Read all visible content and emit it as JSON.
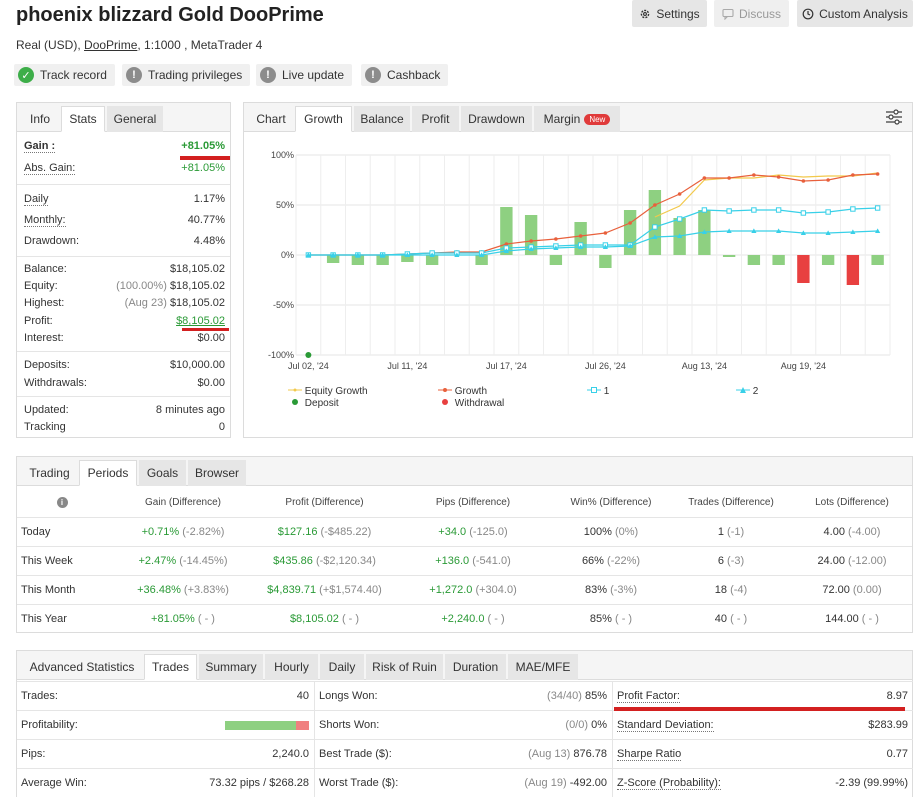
{
  "header": {
    "title": "phoenix blizzard Gold DooPrime",
    "account_type": "Real (USD),",
    "broker": "DooPrime",
    "leverage_platform": ", 1:1000 , MetaTrader 4",
    "buttons": {
      "settings": "Settings",
      "discuss": "Discuss",
      "custom_analysis": "Custom Analysis"
    }
  },
  "badges": [
    {
      "label": "Track record",
      "status": "ok"
    },
    {
      "label": "Trading privileges",
      "status": "warn"
    },
    {
      "label": "Live update",
      "status": "warn"
    },
    {
      "label": "Cashback",
      "status": "warn"
    }
  ],
  "info_panel": {
    "tabs": [
      "Info",
      "Stats",
      "General"
    ],
    "active_tab": "Stats",
    "gain_label": "Gain :",
    "gain_value": "+81.05%",
    "abs_gain_label": "Abs. Gain:",
    "abs_gain_value": "+81.05%",
    "daily_label": "Daily",
    "daily_value": "1.17%",
    "monthly_label": "Monthly:",
    "monthly_value": "40.77%",
    "drawdown_label": "Drawdown:",
    "drawdown_value": "4.48%",
    "balance_label": "Balance:",
    "balance_value": "$18,105.02",
    "equity_label": "Equity:",
    "equity_pct": "(100.00%)",
    "equity_value": "$18,105.02",
    "highest_label": "Highest:",
    "highest_date": "(Aug 23)",
    "highest_value": "$18,105.02",
    "profit_label": "Profit:",
    "profit_value": "$8,105.02",
    "interest_label": "Interest:",
    "interest_value": "$0.00",
    "deposits_label": "Deposits:",
    "deposits_value": "$10,000.00",
    "withdrawals_label": "Withdrawals:",
    "withdrawals_value": "$0.00",
    "updated_label": "Updated:",
    "updated_value": "8 minutes ago",
    "tracking_label": "Tracking",
    "tracking_value": "0"
  },
  "chart_panel": {
    "tabs": [
      "Chart",
      "Growth",
      "Balance",
      "Profit",
      "Drawdown",
      "Margin"
    ],
    "active_tab": "Growth",
    "margin_badge": "New",
    "legend": {
      "equity_growth": "Equity Growth",
      "growth": "Growth",
      "s1": "1",
      "s2": "2",
      "deposit": "Deposit",
      "withdrawal": "Withdrawal"
    }
  },
  "chart_data": {
    "type": "line",
    "y_tick_labels": [
      "100%",
      "50%",
      "0%",
      "-50%",
      "-100%"
    ],
    "y_ticks": [
      100,
      50,
      0,
      -50,
      -100
    ],
    "ylim": [
      -100,
      100
    ],
    "x_tick_labels": [
      "Jul 02, '24",
      "Jul 11, '24",
      "Jul 17, '24",
      "Jul 26, '24",
      "Aug 13, '24",
      "Aug 19, '24"
    ],
    "x_tick_index": [
      0,
      4,
      8,
      12,
      16,
      20
    ],
    "x_count": 24,
    "grid": true,
    "legend_position": "bottom-left",
    "colors": {
      "equity": "#f2c94c",
      "growth": "#e8603c",
      "s1": "#38d0e8",
      "s2": "#38d0e8",
      "bar": "#8ed081",
      "bar_neg": "#e84040",
      "deposit": "#2a9a36",
      "withdrawal": "#e84040"
    },
    "series": [
      {
        "name": "Equity Growth",
        "kind": "line",
        "x": [
          14,
          15,
          16,
          17,
          18,
          19,
          20,
          21,
          22,
          23
        ],
        "values": [
          38,
          49,
          75,
          77,
          77,
          80,
          78,
          79,
          79,
          82
        ]
      },
      {
        "name": "Growth",
        "kind": "line",
        "x": [
          0,
          1,
          2,
          3,
          4,
          5,
          6,
          7,
          8,
          9,
          10,
          11,
          12,
          13,
          14,
          15,
          16,
          17,
          18,
          19,
          20,
          21,
          22,
          23
        ],
        "values": [
          0,
          0,
          0,
          0,
          1,
          2,
          3,
          3,
          11,
          14,
          16,
          19,
          22,
          32,
          50,
          61,
          77,
          77,
          80,
          78,
          74,
          75,
          80,
          81
        ]
      },
      {
        "name": "1",
        "kind": "line",
        "x": [
          0,
          1,
          2,
          3,
          4,
          5,
          6,
          7,
          8,
          9,
          10,
          11,
          12,
          13,
          14,
          15,
          16,
          17,
          18,
          19,
          20,
          21,
          22,
          23
        ],
        "values": [
          0,
          0,
          0,
          0,
          1,
          2,
          2,
          2,
          7,
          8,
          9,
          10,
          10,
          10,
          28,
          36,
          45,
          44,
          45,
          45,
          42,
          43,
          46,
          47
        ]
      },
      {
        "name": "2",
        "kind": "line",
        "x": [
          0,
          1,
          2,
          3,
          4,
          5,
          6,
          7,
          8,
          9,
          10,
          11,
          12,
          13,
          14,
          15,
          16,
          17,
          18,
          19,
          20,
          21,
          22,
          23
        ],
        "values": [
          0,
          0,
          0,
          0,
          0,
          0,
          0,
          0,
          4,
          6,
          7,
          8,
          8,
          9,
          18,
          19,
          23,
          24,
          24,
          24,
          22,
          22,
          23,
          24
        ]
      },
      {
        "name": "",
        "kind": "bar",
        "x": [
          1,
          2,
          3,
          4,
          5,
          7,
          8,
          9,
          10,
          11,
          12,
          13,
          14,
          15,
          16,
          17,
          18,
          19,
          20,
          21,
          22,
          23
        ],
        "values": [
          -8,
          -10,
          -10,
          -7,
          -10,
          -10,
          48,
          40,
          -10,
          33,
          -13,
          45,
          65,
          37,
          45,
          -2,
          -10,
          -10,
          -28,
          -10,
          -30,
          -10
        ]
      }
    ],
    "deposit": {
      "x": 0,
      "value": -100
    }
  },
  "periods_panel": {
    "tabs": [
      "Trading",
      "Periods",
      "Goals",
      "Browser"
    ],
    "active_tab": "Periods",
    "info_icon": "i",
    "columns": [
      "Gain (Difference)",
      "Profit (Difference)",
      "Pips (Difference)",
      "Win% (Difference)",
      "Trades (Difference)",
      "Lots (Difference)"
    ],
    "rows": [
      {
        "period": "Today",
        "gain": "+0.71%",
        "gain_diff": "(-2.82%)",
        "profit": "$127.16",
        "profit_diff": "(-$485.22)",
        "pips": "+34.0",
        "pips_diff": "(-125.0)",
        "win": "100%",
        "win_diff": "(0%)",
        "trades": "1",
        "trades_diff": "(-1)",
        "lots": "4.00",
        "lots_diff": "(-4.00)"
      },
      {
        "period": "This Week",
        "gain": "+2.47%",
        "gain_diff": "(-14.45%)",
        "profit": "$435.86",
        "profit_diff": "(-$2,120.34)",
        "pips": "+136.0",
        "pips_diff": "(-541.0)",
        "win": "66%",
        "win_diff": "(-22%)",
        "trades": "6",
        "trades_diff": "(-3)",
        "lots": "24.00",
        "lots_diff": "(-12.00)"
      },
      {
        "period": "This Month",
        "gain": "+36.48%",
        "gain_diff": "(+3.83%)",
        "profit": "$4,839.71",
        "profit_diff": "(+$1,574.40)",
        "pips": "+1,272.0",
        "pips_diff": "(+304.0)",
        "win": "83%",
        "win_diff": "(-3%)",
        "trades": "18",
        "trades_diff": "(-4)",
        "lots": "72.00",
        "lots_diff": "(0.00)"
      },
      {
        "period": "This Year",
        "gain": "+81.05%",
        "gain_diff": "( - )",
        "profit": "$8,105.02",
        "profit_diff": "( - )",
        "pips": "+2,240.0",
        "pips_diff": "( - )",
        "win": "85%",
        "win_diff": "( - )",
        "trades": "40",
        "trades_diff": "( - )",
        "lots": "144.00",
        "lots_diff": "( - )"
      }
    ]
  },
  "advanced_panel": {
    "tabs": [
      "Advanced Statistics",
      "Trades",
      "Summary",
      "Hourly",
      "Daily",
      "Risk of Ruin",
      "Duration",
      "MAE/MFE"
    ],
    "active_tab": "Trades",
    "col1": [
      {
        "label": "Trades:",
        "value": "40"
      },
      {
        "label": "Profitability:",
        "value": ""
      },
      {
        "label": "Pips:",
        "value": "2,240.0"
      },
      {
        "label": "Average Win:",
        "value": "73.32 pips / $268.28"
      }
    ],
    "profitability_win_fraction": 0.85,
    "col2": [
      {
        "label": "Longs Won:",
        "detail": "(34/40)",
        "value": "85%"
      },
      {
        "label": "Shorts Won:",
        "detail": "(0/0)",
        "value": "0%"
      },
      {
        "label": "Best Trade ($):",
        "detail": "(Aug 13)",
        "value": "876.78"
      },
      {
        "label": "Worst Trade ($):",
        "detail": "(Aug 19)",
        "value": "-492.00"
      }
    ],
    "col3": [
      {
        "label": "Profit Factor:",
        "value": "8.97"
      },
      {
        "label": "Standard Deviation:",
        "value": "$283.99"
      },
      {
        "label": "Sharpe Ratio",
        "value": "0.77"
      },
      {
        "label": "Z-Score (Probability):",
        "value": "-2.39 (99.99%)"
      }
    ]
  }
}
